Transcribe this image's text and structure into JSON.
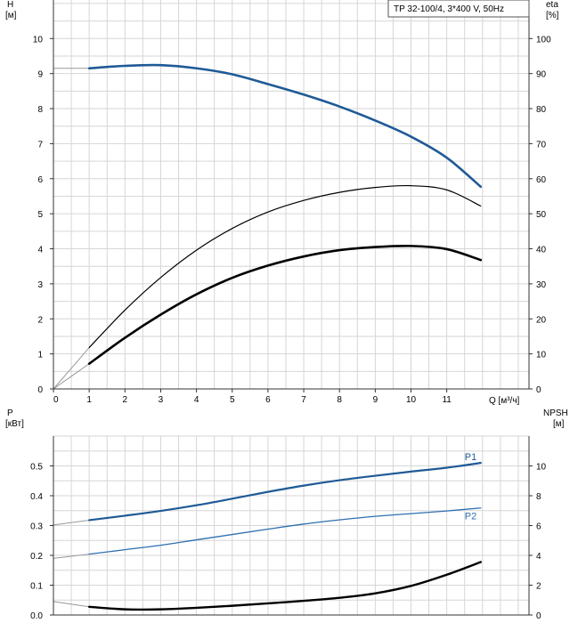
{
  "chart_data": [
    {
      "type": "line",
      "title": "TP 32-100/4, 3*400 V, 50Hz",
      "xlabel": "Q [м³/ч]",
      "ylabel_left": "H\n[м]",
      "ylabel_right": "eta\n[%]",
      "xlim": [
        0,
        13.3
      ],
      "ylim_left": [
        0,
        11.1
      ],
      "ylim_right": [
        0,
        111
      ],
      "x_ticks": [
        "0",
        "1",
        "2",
        "3",
        "4",
        "5",
        "6",
        "7",
        "8",
        "9",
        "10",
        "11"
      ],
      "y_left_ticks": [
        "0",
        "1",
        "2",
        "3",
        "4",
        "5",
        "6",
        "7",
        "8",
        "9",
        "10"
      ],
      "y_right_ticks": [
        "0",
        "10",
        "20",
        "30",
        "40",
        "50",
        "60",
        "70",
        "80",
        "90",
        "100"
      ],
      "grid": true,
      "series": [
        {
          "axis": "left",
          "color": "#1f5a96",
          "extension_color": "#999999",
          "extension": {
            "x": [
              0,
              1
            ],
            "y": [
              9.15,
              9.15
            ]
          },
          "x": [
            1,
            2,
            3,
            4,
            5,
            6,
            7,
            8,
            9,
            10,
            11,
            11.95
          ],
          "y": [
            9.15,
            9.22,
            9.24,
            9.15,
            8.98,
            8.7,
            8.4,
            8.06,
            7.66,
            7.2,
            6.6,
            5.77
          ]
        },
        {
          "axis": "right",
          "color": "#000000",
          "extension_color": "#999999",
          "extension": {
            "x": [
              0,
              1
            ],
            "y": [
              0,
              11.8
            ]
          },
          "x": [
            1,
            2,
            3,
            4,
            5,
            6,
            7,
            8,
            9,
            10,
            11,
            11.95
          ],
          "y": [
            11.8,
            22.5,
            31.8,
            39.6,
            45.8,
            50.5,
            53.8,
            56.1,
            57.5,
            58.0,
            56.8,
            52.2
          ]
        },
        {
          "axis": "right",
          "color": "#000000",
          "extension_color": "#999999",
          "extension": {
            "x": [
              0,
              1
            ],
            "y": [
              0,
              7.2
            ]
          },
          "x": [
            1,
            2,
            3,
            4,
            5,
            6,
            7,
            8,
            9,
            10,
            11,
            11.95
          ],
          "y": [
            7.2,
            14.6,
            21.2,
            27.0,
            31.7,
            35.2,
            37.8,
            39.6,
            40.5,
            40.8,
            39.9,
            36.8
          ]
        }
      ]
    },
    {
      "type": "line",
      "ylabel_left": "P\n[кВт]",
      "ylabel_right": "NPSH\n[м]",
      "xlim": [
        0,
        13.3
      ],
      "ylim_left": [
        0,
        0.6
      ],
      "ylim_right": [
        0,
        12
      ],
      "y_left_ticks": [
        "0.0",
        "0.1",
        "0.2",
        "0.3",
        "0.4",
        "0.5"
      ],
      "y_right_ticks": [
        "0",
        "2",
        "4",
        "6",
        "8",
        "10"
      ],
      "grid": true,
      "series": [
        {
          "name": "P1",
          "axis": "left",
          "color": "#1f5a96",
          "extension_color": "#999999",
          "extension": {
            "x": [
              0,
              1
            ],
            "y": [
              0.302,
              0.318
            ]
          },
          "x": [
            1,
            2,
            3,
            4,
            5,
            6,
            7,
            8,
            9,
            10,
            11,
            11.95
          ],
          "y": [
            0.318,
            0.333,
            0.349,
            0.368,
            0.39,
            0.413,
            0.434,
            0.452,
            0.467,
            0.481,
            0.494,
            0.51
          ]
        },
        {
          "name": "P2",
          "axis": "left",
          "color": "#2e6fb0",
          "extension_color": "#999999",
          "extension": {
            "x": [
              0,
              1
            ],
            "y": [
              0.19,
              0.204
            ]
          },
          "x": [
            1,
            2,
            3,
            4,
            5,
            6,
            7,
            8,
            9,
            10,
            11,
            11.95
          ],
          "y": [
            0.204,
            0.219,
            0.234,
            0.252,
            0.27,
            0.288,
            0.305,
            0.319,
            0.331,
            0.34,
            0.349,
            0.359
          ]
        },
        {
          "name": "",
          "axis": "right",
          "color": "#000000",
          "extension_color": "#999999",
          "extension": {
            "x": [
              0,
              1
            ],
            "y": [
              0.9,
              0.55
            ]
          },
          "x": [
            1,
            2,
            3,
            4,
            5,
            6,
            7,
            8,
            9,
            10,
            11,
            11.95
          ],
          "y": [
            0.55,
            0.38,
            0.38,
            0.48,
            0.62,
            0.78,
            0.95,
            1.15,
            1.45,
            1.95,
            2.7,
            3.55
          ]
        }
      ]
    }
  ]
}
